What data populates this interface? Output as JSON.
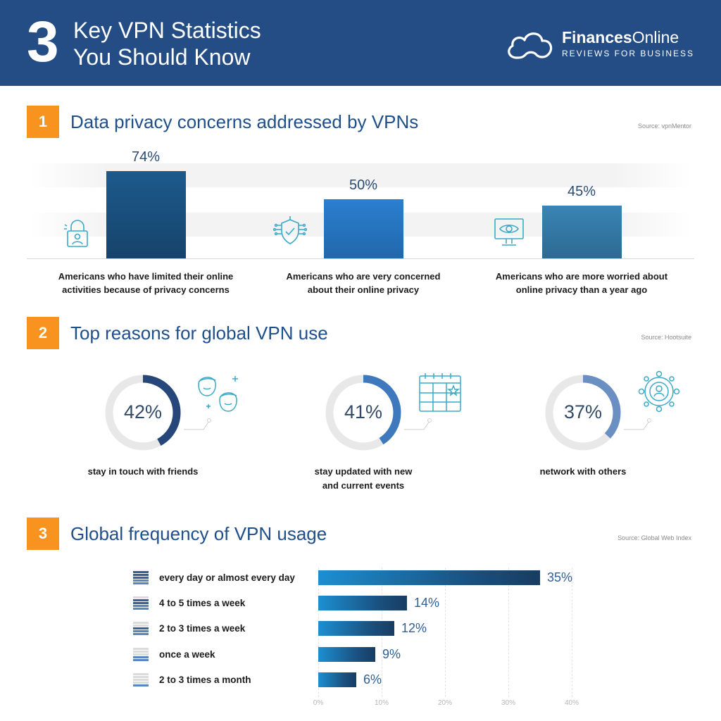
{
  "header": {
    "number": "3",
    "title_line1": "Key VPN Statistics",
    "title_line2": "You Should Know",
    "brand_name_bold": "Finances",
    "brand_name_rest": "Online",
    "brand_tagline": "REVIEWS FOR BUSINESS"
  },
  "colors": {
    "header_bg": "#244d86",
    "accent_orange": "#f7931e",
    "bar_blue_dark": "#1a4f7e",
    "bar_blue_mid": "#2b7ac4",
    "bar_blue_light": "#3a7fb0",
    "donut_track": "#e8e8e8",
    "icon_teal": "#3aa9c7"
  },
  "sections": {
    "s1": {
      "number": "1",
      "title": "Data privacy concerns addressed by VPNs",
      "source": "Source: vpnMentor"
    },
    "s2": {
      "number": "2",
      "title": "Top reasons for global VPN use",
      "source": "Source: Hootsuite"
    },
    "s3": {
      "number": "3",
      "title": "Global frequency of VPN usage",
      "source": "Source: Global Web Index"
    }
  },
  "chart_data": [
    {
      "type": "bar",
      "categories": [
        "Americans who have limited their online activities because of privacy concerns",
        "Americans who are very concerned about their online privacy",
        "Americans who are more worried about online privacy than a year ago"
      ],
      "values": [
        74,
        50,
        45
      ],
      "value_labels": [
        "74%",
        "50%",
        "45%"
      ],
      "label_lines": [
        [
          "Americans who have limited their online",
          "activities because of privacy concerns"
        ],
        [
          "Americans who are very concerned",
          "about their online privacy"
        ],
        [
          "Americans who are more worried about",
          "online privacy than a year ago"
        ]
      ],
      "icons": [
        "padlock-user-icon",
        "shield-circuit-icon",
        "monitor-eye-icon"
      ],
      "ylim": [
        0,
        100
      ],
      "title": "Data privacy concerns addressed by VPNs"
    },
    {
      "type": "pie",
      "categories": [
        "stay in touch with friends",
        "stay updated with new and current events",
        "network with others"
      ],
      "values": [
        42,
        41,
        37
      ],
      "value_labels": [
        "42%",
        "41%",
        "37%"
      ],
      "label_lines": [
        [
          "stay in touch with friends"
        ],
        [
          "stay updated with new",
          "and current events"
        ],
        [
          "network with others"
        ]
      ],
      "icons": [
        "friends-faces-icon",
        "calendar-icon",
        "network-user-icon"
      ],
      "title": "Top reasons for global VPN use"
    },
    {
      "type": "bar",
      "orientation": "horizontal",
      "categories": [
        "every day or almost every day",
        "4 to 5 times a week",
        "2 to 3 times a week",
        "once a week",
        "2 to 3 times a month"
      ],
      "values": [
        35,
        14,
        12,
        9,
        6
      ],
      "value_labels": [
        "35%",
        "14%",
        "12%",
        "9%",
        "6%"
      ],
      "frequency_levels": [
        5,
        4,
        3,
        2,
        1
      ],
      "xlim": [
        0,
        40
      ],
      "xticks": [
        "0%",
        "10%",
        "20%",
        "30%",
        "40%"
      ],
      "title": "Global frequency of VPN usage"
    }
  ]
}
